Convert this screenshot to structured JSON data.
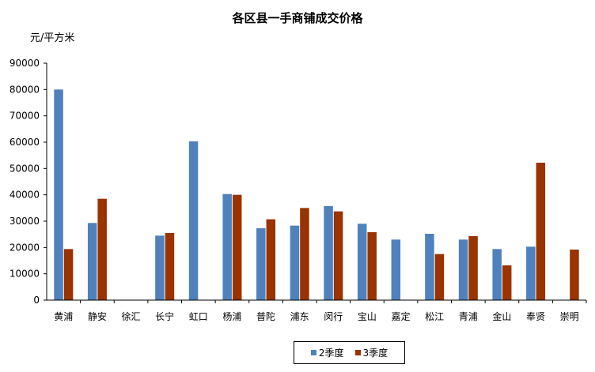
{
  "chart_data": {
    "type": "bar",
    "title": "各区县一手商铺成交价格",
    "ylabel": "元/平方米",
    "xlabel": "",
    "ylim": [
      0,
      90000
    ],
    "yticks": [
      "0",
      "10000",
      "20000",
      "30000",
      "40000",
      "50000",
      "60000",
      "70000",
      "80000",
      "90000"
    ],
    "grid": false,
    "legend_position": "bottom",
    "categories": [
      "黄浦",
      "静安",
      "徐汇",
      "长宁",
      "虹口",
      "杨浦",
      "普陀",
      "浦东",
      "闵行",
      "宝山",
      "嘉定",
      "松江",
      "青浦",
      "金山",
      "奉贤",
      "崇明"
    ],
    "series": [
      {
        "name": "2季度",
        "color": "#4f81bd",
        "values": [
          80000,
          29300,
          null,
          24500,
          60300,
          40300,
          27300,
          28300,
          35700,
          29000,
          23000,
          25200,
          23000,
          19400,
          20300,
          null
        ]
      },
      {
        "name": "3季度",
        "color": "#993300",
        "values": [
          19400,
          38500,
          null,
          25500,
          null,
          40000,
          30700,
          35000,
          33700,
          25800,
          null,
          17500,
          24300,
          13200,
          52200,
          19200
        ]
      }
    ]
  }
}
